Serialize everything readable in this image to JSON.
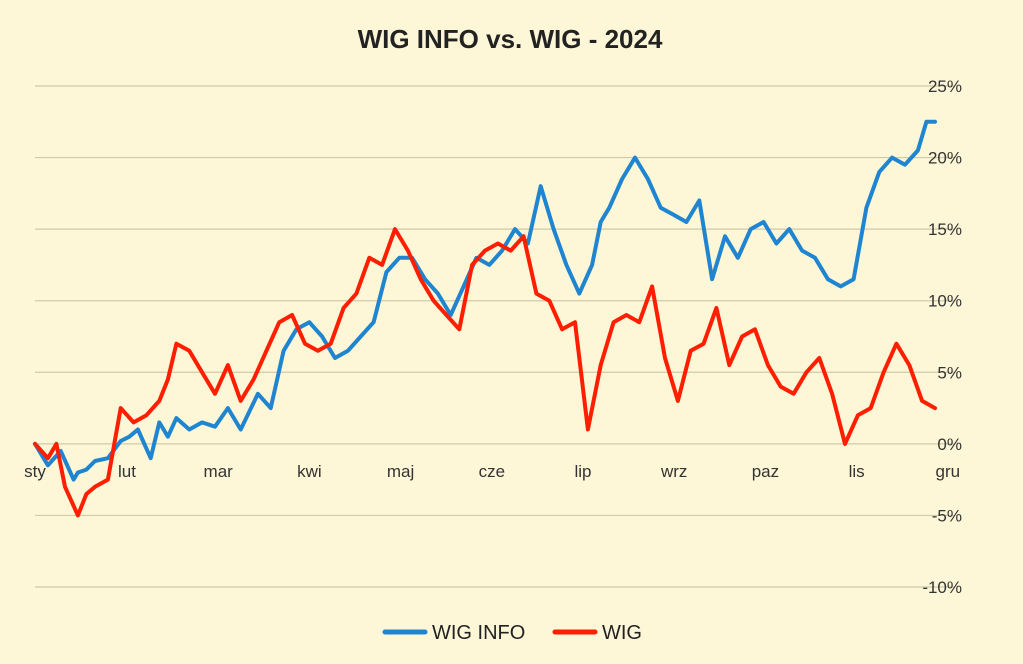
{
  "chart_data": {
    "type": "line",
    "title": "WIG INFO vs. WIG - 2024",
    "xlabel": "",
    "ylabel": "",
    "x_ticks": [
      "sty",
      "lut",
      "mar",
      "kwi",
      "maj",
      "cze",
      "lip",
      "wrz",
      "paz",
      "lis",
      "gru"
    ],
    "y_ticks": [
      "25%",
      "20%",
      "15%",
      "10%",
      "5%",
      "0%",
      "-5%",
      "-10%"
    ],
    "y_tick_values": [
      25,
      20,
      15,
      10,
      5,
      0,
      -5,
      -10
    ],
    "ylim": [
      -10,
      25
    ],
    "xlim": [
      0,
      10.5
    ],
    "grid": "horizontal",
    "y_axis_side": "right",
    "legend_position": "bottom",
    "series": [
      {
        "name": "WIG INFO",
        "color": "#1f85d0",
        "x": [
          0,
          0.15,
          0.3,
          0.45,
          0.5,
          0.6,
          0.7,
          0.85,
          1.0,
          1.1,
          1.2,
          1.35,
          1.45,
          1.55,
          1.65,
          1.8,
          1.95,
          2.1,
          2.25,
          2.4,
          2.6,
          2.75,
          2.9,
          3.05,
          3.2,
          3.35,
          3.5,
          3.65,
          3.8,
          3.95,
          4.1,
          4.25,
          4.4,
          4.55,
          4.7,
          4.85,
          5.0,
          5.15,
          5.3,
          5.45,
          5.6,
          5.75,
          5.9,
          6.05,
          6.2,
          6.35,
          6.5,
          6.6,
          6.7,
          6.85,
          7.0,
          7.15,
          7.3,
          7.45,
          7.6,
          7.75,
          7.9,
          8.05,
          8.2,
          8.35,
          8.5,
          8.65,
          8.8,
          8.95,
          9.1,
          9.25,
          9.4,
          9.55,
          9.7,
          9.85,
          10.0,
          10.15,
          10.3,
          10.4,
          10.5
        ],
        "values": [
          0,
          -1.5,
          -0.5,
          -2.5,
          -2.0,
          -1.8,
          -1.2,
          -1.0,
          0.2,
          0.5,
          1.0,
          -1.0,
          1.5,
          0.5,
          1.8,
          1.0,
          1.5,
          1.2,
          2.5,
          1.0,
          3.5,
          2.5,
          6.5,
          8.0,
          8.5,
          7.5,
          6.0,
          6.5,
          7.5,
          8.5,
          12.0,
          13.0,
          13.0,
          11.5,
          10.5,
          9.0,
          11.0,
          13.0,
          12.5,
          13.5,
          15.0,
          14.0,
          18.0,
          15.0,
          12.5,
          10.5,
          12.5,
          15.5,
          16.5,
          18.5,
          20.0,
          18.5,
          16.5,
          16.0,
          15.5,
          17.0,
          11.5,
          14.5,
          13.0,
          15.0,
          15.5,
          14.0,
          15.0,
          13.5,
          13.0,
          11.5,
          11.0,
          11.5,
          16.5,
          19.0,
          20.0,
          19.5,
          20.5,
          22.5,
          22.5
        ]
      },
      {
        "name": "WIG",
        "color": "#ff1e00",
        "x": [
          0,
          0.15,
          0.25,
          0.35,
          0.5,
          0.6,
          0.7,
          0.85,
          1.0,
          1.15,
          1.3,
          1.45,
          1.55,
          1.65,
          1.8,
          1.95,
          2.1,
          2.25,
          2.4,
          2.55,
          2.7,
          2.85,
          3.0,
          3.15,
          3.3,
          3.45,
          3.6,
          3.75,
          3.9,
          4.05,
          4.2,
          4.35,
          4.5,
          4.65,
          4.8,
          4.95,
          5.1,
          5.25,
          5.4,
          5.55,
          5.7,
          5.85,
          6.0,
          6.15,
          6.3,
          6.45,
          6.6,
          6.75,
          6.9,
          7.05,
          7.2,
          7.35,
          7.5,
          7.65,
          7.8,
          7.95,
          8.1,
          8.25,
          8.4,
          8.55,
          8.7,
          8.85,
          9.0,
          9.15,
          9.3,
          9.45,
          9.6,
          9.75,
          9.9,
          10.05,
          10.2,
          10.35,
          10.5
        ],
        "values": [
          0,
          -1.0,
          0,
          -3.0,
          -5.0,
          -3.5,
          -3.0,
          -2.5,
          2.5,
          1.5,
          2.0,
          3.0,
          4.5,
          7.0,
          6.5,
          5.0,
          3.5,
          5.5,
          3.0,
          4.5,
          6.5,
          8.5,
          9.0,
          7.0,
          6.5,
          7.0,
          9.5,
          10.5,
          13.0,
          12.5,
          15.0,
          13.5,
          11.5,
          10.0,
          9.0,
          8.0,
          12.5,
          13.5,
          14.0,
          13.5,
          14.5,
          10.5,
          10.0,
          8.0,
          8.5,
          1.0,
          5.5,
          8.5,
          9.0,
          8.5,
          11.0,
          6.0,
          3.0,
          6.5,
          7.0,
          9.5,
          5.5,
          7.5,
          8.0,
          5.5,
          4.0,
          3.5,
          5.0,
          6.0,
          3.5,
          0,
          2.0,
          2.5,
          5.0,
          7.0,
          5.5,
          3.0,
          2.5
        ]
      }
    ]
  }
}
